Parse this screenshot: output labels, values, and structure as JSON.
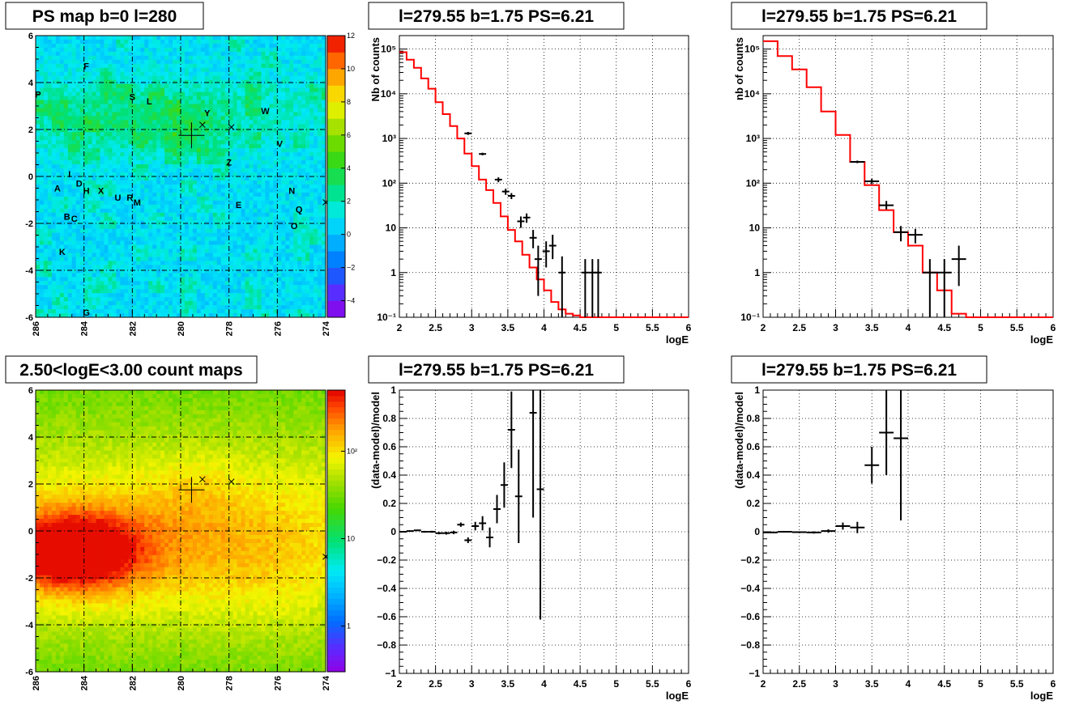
{
  "colors": {
    "model_line": "#ff0000",
    "data_marks": "#000000",
    "grid": "#000000",
    "background": "#ffffff"
  },
  "chart_data": [
    {
      "id": "ps-map",
      "type": "heatmap",
      "title": "PS map b=0 l=280",
      "xlim": [
        286,
        274
      ],
      "ylim": [
        -6,
        6
      ],
      "x_ticks": [
        286,
        284,
        282,
        280,
        278,
        276,
        274
      ],
      "y_ticks": [
        -6,
        -4,
        -2,
        0,
        2,
        4,
        6
      ],
      "scale": "linear",
      "z_range": [
        -5,
        12
      ],
      "palette_ticks": [
        "−4",
        "−2",
        "0",
        "2",
        "4",
        "6",
        "8",
        "10",
        "12"
      ],
      "palette_tick_values": [
        -4,
        -2,
        0,
        2,
        4,
        6,
        8,
        10,
        12
      ],
      "grid": true,
      "sources": [
        {
          "label": "F",
          "l": 283.9,
          "b": 4.7
        },
        {
          "label": "P",
          "l": 285.9,
          "b": 3.5
        },
        {
          "label": "S",
          "l": 282.0,
          "b": 3.4
        },
        {
          "label": "L",
          "l": 281.3,
          "b": 3.2
        },
        {
          "label": "Y",
          "l": 278.9,
          "b": 2.7
        },
        {
          "label": "W",
          "l": 276.5,
          "b": 2.8
        },
        {
          "label": "V",
          "l": 275.9,
          "b": 1.4
        },
        {
          "label": "Z",
          "l": 278.0,
          "b": 0.6
        },
        {
          "label": "I",
          "l": 284.6,
          "b": 0.1
        },
        {
          "label": "D",
          "l": 284.2,
          "b": -0.3
        },
        {
          "label": "A",
          "l": 285.1,
          "b": -0.5
        },
        {
          "label": "H",
          "l": 283.9,
          "b": -0.6
        },
        {
          "label": "X",
          "l": 283.3,
          "b": -0.6
        },
        {
          "label": "U",
          "l": 282.6,
          "b": -0.9
        },
        {
          "label": "R",
          "l": 282.1,
          "b": -0.9
        },
        {
          "label": "M",
          "l": 281.8,
          "b": -1.1
        },
        {
          "label": "N",
          "l": 275.4,
          "b": -0.6
        },
        {
          "label": "E",
          "l": 277.6,
          "b": -1.2
        },
        {
          "label": "Q",
          "l": 275.1,
          "b": -1.4
        },
        {
          "label": "B",
          "l": 284.7,
          "b": -1.7
        },
        {
          "label": "C",
          "l": 284.4,
          "b": -1.8
        },
        {
          "label": "O",
          "l": 275.3,
          "b": -2.1
        },
        {
          "label": "K",
          "l": 284.9,
          "b": -3.2
        },
        {
          "label": "G",
          "l": 283.9,
          "b": -5.8
        }
      ],
      "markers": [
        {
          "kind": "big-cross",
          "l": 279.55,
          "b": 1.75
        },
        {
          "kind": "x",
          "l": 279.1,
          "b": 2.2
        },
        {
          "kind": "x",
          "l": 277.9,
          "b": 2.1
        },
        {
          "kind": "x",
          "l": 274.0,
          "b": -1.1
        }
      ]
    },
    {
      "id": "count-map",
      "type": "heatmap",
      "title": "2.50<logE<3.00 count maps",
      "xlim": [
        286,
        274
      ],
      "ylim": [
        -6,
        6
      ],
      "x_ticks": [
        286,
        284,
        282,
        280,
        278,
        276,
        274
      ],
      "y_ticks": [
        -6,
        -4,
        -2,
        0,
        2,
        4,
        6
      ],
      "scale": "log",
      "palette_ticks": [
        "1",
        "10",
        "10²"
      ],
      "palette_tick_values": [
        1,
        10,
        100
      ],
      "grid": true
    },
    {
      "id": "spectrum-1",
      "type": "line",
      "title": "l=279.55 b=1.75 PS=6.21",
      "xlabel": "logE",
      "ylabel": "Nb of counts",
      "xlim": [
        2,
        6
      ],
      "ylim": [
        0.1,
        200000
      ],
      "yscale": "log",
      "x_ticks": [
        "2",
        "2.5",
        "3",
        "3.5",
        "4",
        "4.5",
        "5",
        "5.5",
        "6"
      ],
      "x_tick_values": [
        2,
        2.5,
        3,
        3.5,
        4,
        4.5,
        5,
        5.5,
        6
      ],
      "y_ticks": [
        "10⁻¹",
        "1",
        "10",
        "10²",
        "10³",
        "10⁴",
        "10⁵"
      ],
      "y_tick_values": [
        0.1,
        1,
        10,
        100,
        1000,
        10000,
        100000
      ],
      "grid": true,
      "model_step": {
        "edges": [
          2.0,
          2.1,
          2.2,
          2.3,
          2.4,
          2.5,
          2.6,
          2.7,
          2.8,
          2.9,
          3.0,
          3.1,
          3.2,
          3.3,
          3.4,
          3.5,
          3.6,
          3.7,
          3.8,
          3.9,
          4.0,
          4.1,
          4.2,
          4.3,
          4.4,
          4.5,
          6.0
        ],
        "values": [
          85000,
          58000,
          38000,
          22000,
          13000,
          6500,
          3500,
          1900,
          1000,
          460,
          240,
          120,
          70,
          36,
          18,
          9,
          5,
          2.5,
          1.3,
          0.7,
          0.4,
          0.22,
          0.15,
          0.12,
          0.11,
          0.1
        ]
      },
      "data_points": [
        {
          "x": 2.95,
          "y": 1300,
          "lo": 1200,
          "hi": 1400
        },
        {
          "x": 3.15,
          "y": 450,
          "lo": 420,
          "hi": 480
        },
        {
          "x": 3.37,
          "y": 120,
          "lo": 105,
          "hi": 135
        },
        {
          "x": 3.47,
          "y": 65,
          "lo": 55,
          "hi": 75
        },
        {
          "x": 3.55,
          "y": 52,
          "lo": 44,
          "hi": 60
        },
        {
          "x": 3.68,
          "y": 14,
          "lo": 10,
          "hi": 18
        },
        {
          "x": 3.76,
          "y": 17,
          "lo": 13,
          "hi": 21
        },
        {
          "x": 3.85,
          "y": 6,
          "lo": 3.5,
          "hi": 9
        },
        {
          "x": 3.92,
          "y": 2,
          "lo": 0.3,
          "hi": 4
        },
        {
          "x": 4.03,
          "y": 3,
          "lo": 1.3,
          "hi": 5
        },
        {
          "x": 4.12,
          "y": 4,
          "lo": 2,
          "hi": 7
        },
        {
          "x": 4.25,
          "y": 1,
          "lo": 0.1,
          "hi": 2.3
        },
        {
          "x": 4.57,
          "y": 1,
          "lo": 0.1,
          "hi": 2
        },
        {
          "x": 4.67,
          "y": 1,
          "lo": 0.1,
          "hi": 2
        },
        {
          "x": 4.75,
          "y": 1,
          "lo": 0.1,
          "hi": 2
        }
      ]
    },
    {
      "id": "spectrum-2",
      "type": "line",
      "title": "l=279.55 b=1.75 PS=6.21",
      "xlabel": "logE",
      "ylabel": "nb of counts",
      "xlim": [
        2,
        6
      ],
      "ylim": [
        0.1,
        200000
      ],
      "yscale": "log",
      "x_ticks": [
        "2",
        "2.5",
        "3",
        "3.5",
        "4",
        "4.5",
        "5",
        "5.5",
        "6"
      ],
      "x_tick_values": [
        2,
        2.5,
        3,
        3.5,
        4,
        4.5,
        5,
        5.5,
        6
      ],
      "y_ticks": [
        "10⁻¹",
        "1",
        "10",
        "10²",
        "10³",
        "10⁴",
        "10⁵"
      ],
      "y_tick_values": [
        0.1,
        1,
        10,
        100,
        1000,
        10000,
        100000
      ],
      "grid": true,
      "model_step": {
        "edges": [
          2.0,
          2.2,
          2.4,
          2.6,
          2.8,
          3.0,
          3.2,
          3.4,
          3.6,
          3.8,
          4.0,
          4.2,
          4.4,
          4.6,
          4.8,
          6.0
        ],
        "values": [
          150000,
          70000,
          35000,
          14000,
          4000,
          1200,
          300,
          90,
          25,
          8,
          4,
          1,
          0.4,
          0.12,
          0.1
        ]
      },
      "data_points": [
        {
          "x": 3.3,
          "y": 300,
          "lo": 280,
          "hi": 320
        },
        {
          "x": 3.5,
          "y": 110,
          "lo": 95,
          "hi": 125
        },
        {
          "x": 3.7,
          "y": 32,
          "lo": 26,
          "hi": 40
        },
        {
          "x": 3.9,
          "y": 8,
          "lo": 5,
          "hi": 11
        },
        {
          "x": 4.1,
          "y": 7,
          "lo": 4.5,
          "hi": 9.5
        },
        {
          "x": 4.3,
          "y": 1,
          "lo": 0.1,
          "hi": 2
        },
        {
          "x": 4.5,
          "y": 1,
          "lo": 0.1,
          "hi": 2
        },
        {
          "x": 4.7,
          "y": 2,
          "lo": 0.5,
          "hi": 4
        }
      ]
    },
    {
      "id": "residual-1",
      "type": "scatter",
      "title": "l=279.55 b=1.75 PS=6.21",
      "xlabel": "logE",
      "ylabel": "(data-model)/model",
      "xlim": [
        2,
        6
      ],
      "ylim": [
        -1,
        1
      ],
      "x_ticks": [
        "2",
        "2.5",
        "3",
        "3.5",
        "4",
        "4.5",
        "5",
        "5.5",
        "6"
      ],
      "x_tick_values": [
        2,
        2.5,
        3,
        3.5,
        4,
        4.5,
        5,
        5.5,
        6
      ],
      "y_ticks": [
        "−1",
        "−0.8",
        "−0.6",
        "−0.4",
        "−0.2",
        "0",
        "0.2",
        "0.4",
        "0.6",
        "0.8",
        "1"
      ],
      "y_tick_values": [
        -1,
        -0.8,
        -0.6,
        -0.4,
        -0.2,
        0,
        0.2,
        0.4,
        0.6,
        0.8,
        1
      ],
      "grid": true,
      "points": [
        {
          "x": 2.05,
          "y": 0.0,
          "err": 0.004
        },
        {
          "x": 2.15,
          "y": 0.005,
          "err": 0.004
        },
        {
          "x": 2.25,
          "y": 0.01,
          "err": 0.005
        },
        {
          "x": 2.35,
          "y": 0.0,
          "err": 0.006
        },
        {
          "x": 2.45,
          "y": 0.0,
          "err": 0.007
        },
        {
          "x": 2.55,
          "y": -0.01,
          "err": 0.008
        },
        {
          "x": 2.65,
          "y": -0.01,
          "err": 0.01
        },
        {
          "x": 2.75,
          "y": -0.005,
          "err": 0.012
        },
        {
          "x": 2.85,
          "y": 0.05,
          "err": 0.015
        },
        {
          "x": 2.95,
          "y": -0.06,
          "err": 0.02
        },
        {
          "x": 3.05,
          "y": 0.04,
          "err": 0.03
        },
        {
          "x": 3.15,
          "y": 0.06,
          "err": 0.05
        },
        {
          "x": 3.25,
          "y": -0.04,
          "err": 0.07
        },
        {
          "x": 3.35,
          "y": 0.16,
          "err": 0.1
        },
        {
          "x": 3.45,
          "y": 0.33,
          "err": 0.16
        },
        {
          "x": 3.55,
          "y": 0.72,
          "err": 0.27
        },
        {
          "x": 3.65,
          "y": 0.25,
          "err": 0.33
        },
        {
          "x": 3.85,
          "y": 0.84,
          "err": 0.74
        },
        {
          "x": 3.95,
          "y": 0.3,
          "err": 0.92
        }
      ]
    },
    {
      "id": "residual-2",
      "type": "scatter",
      "title": "l=279.55 b=1.75 PS=6.21",
      "xlabel": "logE",
      "ylabel": "(data-model)/model",
      "xlim": [
        2,
        6
      ],
      "ylim": [
        -1,
        1
      ],
      "x_ticks": [
        "2",
        "2.5",
        "3",
        "3.5",
        "4",
        "4.5",
        "5",
        "5.5",
        "6"
      ],
      "x_tick_values": [
        2,
        2.5,
        3,
        3.5,
        4,
        4.5,
        5,
        5.5,
        6
      ],
      "y_ticks": [
        "−1",
        "−0.8",
        "−0.6",
        "−0.4",
        "−0.2",
        "0",
        "0.2",
        "0.4",
        "0.6",
        "0.8",
        "1"
      ],
      "y_tick_values": [
        -1,
        -0.8,
        -0.6,
        -0.4,
        -0.2,
        0,
        0.2,
        0.4,
        0.6,
        0.8,
        1
      ],
      "grid": true,
      "points": [
        {
          "x": 2.1,
          "y": -0.005,
          "err": 0.004
        },
        {
          "x": 2.3,
          "y": 0.0,
          "err": 0.005
        },
        {
          "x": 2.5,
          "y": -0.003,
          "err": 0.006
        },
        {
          "x": 2.7,
          "y": -0.005,
          "err": 0.008
        },
        {
          "x": 2.9,
          "y": 0.005,
          "err": 0.012
        },
        {
          "x": 3.1,
          "y": 0.04,
          "err": 0.025
        },
        {
          "x": 3.3,
          "y": 0.03,
          "err": 0.04
        },
        {
          "x": 3.5,
          "y": 0.47,
          "err": 0.13
        },
        {
          "x": 3.7,
          "y": 0.7,
          "err": 0.3
        },
        {
          "x": 3.9,
          "y": 0.66,
          "err": 0.58
        }
      ]
    }
  ]
}
